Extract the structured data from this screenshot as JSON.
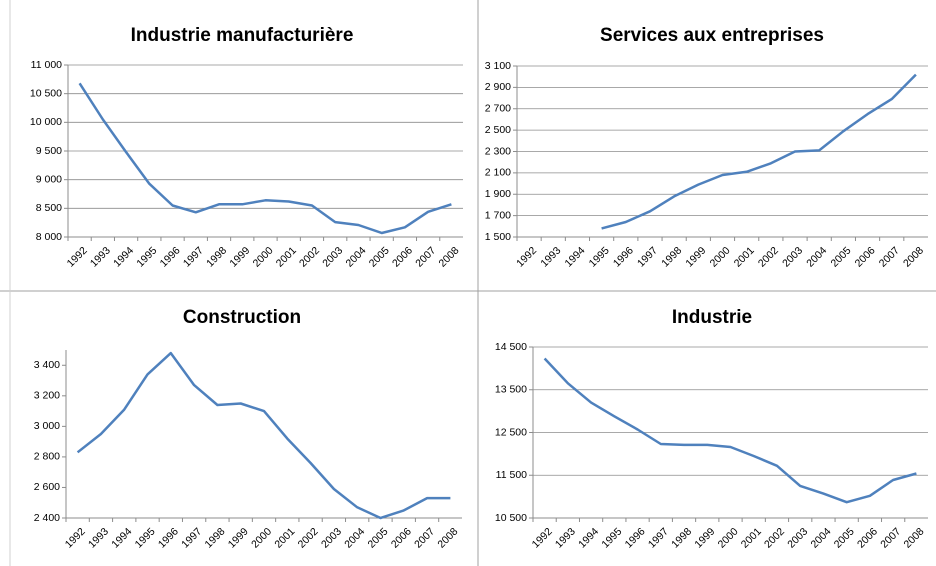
{
  "chart_data": [
    {
      "type": "line",
      "title": "Industrie manufacturière",
      "categories": [
        "1992",
        "1993",
        "1994",
        "1995",
        "1996",
        "1997",
        "1998",
        "1999",
        "2000",
        "2001",
        "2002",
        "2003",
        "2004",
        "2005",
        "2006",
        "2007",
        "2008"
      ],
      "series": [
        {
          "name": "Industrie manufacturière",
          "color": "#4f81bd",
          "values": [
            10680,
            10050,
            9480,
            8930,
            8550,
            8430,
            8570,
            8570,
            8640,
            8620,
            8550,
            8260,
            8210,
            8070,
            8170,
            8440,
            8570
          ]
        }
      ],
      "ylim": [
        8000,
        11000
      ],
      "yticks": [
        {
          "value": 8000,
          "label": "8 000"
        },
        {
          "value": 8500,
          "label": "8 500"
        },
        {
          "value": 9000,
          "label": "9 000"
        },
        {
          "value": 9500,
          "label": "9 500"
        },
        {
          "value": 10000,
          "label": "10 000"
        },
        {
          "value": 10500,
          "label": "10 500"
        },
        {
          "value": 11000,
          "label": "11 000"
        }
      ],
      "grid": true
    },
    {
      "type": "line",
      "title": "Services aux entreprises",
      "categories": [
        "1992",
        "1993",
        "1994",
        "1995",
        "1996",
        "1997",
        "1998",
        "1999",
        "2000",
        "2001",
        "2002",
        "2003",
        "2004",
        "2005",
        "2006",
        "2007",
        "2008"
      ],
      "series": [
        {
          "name": "Services aux entreprises",
          "color": "#4f81bd",
          "values": [
            null,
            null,
            null,
            1580,
            1640,
            1740,
            1880,
            1990,
            2080,
            2110,
            2190,
            2300,
            2310,
            2490,
            2650,
            2790,
            3020
          ]
        }
      ],
      "ylim": [
        1500,
        3100
      ],
      "yticks": [
        {
          "value": 1500,
          "label": "1 500"
        },
        {
          "value": 1700,
          "label": "1 700"
        },
        {
          "value": 1900,
          "label": "1 900"
        },
        {
          "value": 2100,
          "label": "2 100"
        },
        {
          "value": 2300,
          "label": "2 300"
        },
        {
          "value": 2500,
          "label": "2 500"
        },
        {
          "value": 2700,
          "label": "2 700"
        },
        {
          "value": 2900,
          "label": "2 900"
        },
        {
          "value": 3100,
          "label": "3 100"
        }
      ],
      "grid": true
    },
    {
      "type": "line",
      "title": "Construction",
      "categories": [
        "1992",
        "1993",
        "1994",
        "1995",
        "1996",
        "1997",
        "1998",
        "1999",
        "2000",
        "2001",
        "2002",
        "2003",
        "2004",
        "2005",
        "2006",
        "2007",
        "2008"
      ],
      "series": [
        {
          "name": "Construction",
          "color": "#4f81bd",
          "values": [
            2830,
            2950,
            3110,
            3340,
            3480,
            3270,
            3140,
            3150,
            3100,
            2920,
            2760,
            2590,
            2470,
            2400,
            2450,
            2530,
            2530
          ]
        }
      ],
      "ylim": [
        2400,
        3500
      ],
      "yticks": [
        {
          "value": 2400,
          "label": "2 400"
        },
        {
          "value": 2600,
          "label": "2 600"
        },
        {
          "value": 2800,
          "label": "2 800"
        },
        {
          "value": 3000,
          "label": "3 000"
        },
        {
          "value": 3200,
          "label": "3 200"
        },
        {
          "value": 3400,
          "label": "3 400"
        }
      ],
      "grid": false
    },
    {
      "type": "line",
      "title": "Industrie",
      "categories": [
        "1992",
        "1993",
        "1994",
        "1995",
        "1996",
        "1997",
        "1998",
        "1999",
        "2000",
        "2001",
        "2002",
        "2003",
        "2004",
        "2005",
        "2006",
        "2007",
        "2008"
      ],
      "series": [
        {
          "name": "Industrie",
          "color": "#4f81bd",
          "values": [
            14230,
            13650,
            13200,
            12880,
            12570,
            12230,
            12210,
            12210,
            12160,
            11950,
            11720,
            11250,
            11070,
            10870,
            11020,
            11390,
            11540
          ]
        }
      ],
      "ylim": [
        10500,
        14500
      ],
      "yticks": [
        {
          "value": 10500,
          "label": "10 500"
        },
        {
          "value": 11500,
          "label": "11 500"
        },
        {
          "value": 12500,
          "label": "12 500"
        },
        {
          "value": 13500,
          "label": "13 500"
        },
        {
          "value": 14500,
          "label": "14 500"
        }
      ],
      "grid": true
    }
  ]
}
